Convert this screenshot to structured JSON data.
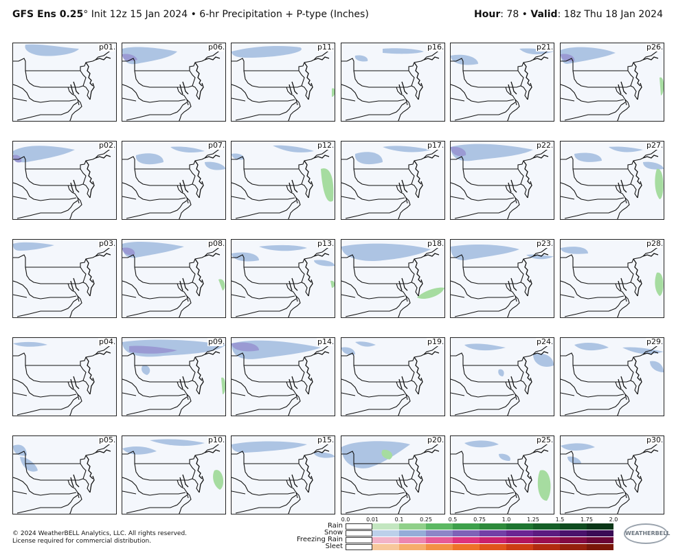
{
  "header": {
    "model": "GFS Ens 0.25",
    "degree": "°",
    "init": " Init 12z 15 Jan 2024",
    "bullet": " • ",
    "product": "6-hr Precipitation + P-type (Inches)",
    "hour_label": "Hour",
    "hour_value": ": 78",
    "valid_label": "Valid",
    "valid_value": ": 18z Thu 18 Jan 2024"
  },
  "panels": {
    "rows": [
      [
        "p01",
        "p06",
        "p11",
        "p16",
        "p21",
        "p26"
      ],
      [
        "p02",
        "p07",
        "p12",
        "p17",
        "p22",
        "p27"
      ],
      [
        "p03",
        "p08",
        "p13",
        "p18",
        "p23",
        "p28"
      ],
      [
        "p04",
        "p09",
        "p14",
        "p19",
        "p24",
        "p29"
      ],
      [
        "p05",
        "p10",
        "p15",
        "p20",
        "p25",
        "p30"
      ]
    ]
  },
  "colorbar": {
    "ticks": [
      "0.0",
      "0.01",
      "0.1",
      "0.25",
      "0.5",
      "0.75",
      "1.0",
      "1.25",
      "1.5",
      "1.75",
      "2.0"
    ],
    "types": [
      "Rain",
      "Snow",
      "Freezing Rain",
      "Sleet"
    ],
    "colors": {
      "rain": [
        "#ffffff",
        "#c3e6c0",
        "#90d08a",
        "#5cb863",
        "#3da04b",
        "#2d8a3b",
        "#1e7531",
        "#155f27",
        "#0e4b1f",
        "#0a3617"
      ],
      "snow": [
        "#ffffff",
        "#bcd0ea",
        "#95acd8",
        "#8c85c7",
        "#7e62b7",
        "#733fa6",
        "#6b2593",
        "#5c1b80",
        "#4a126b",
        "#3a0b55"
      ],
      "freezing_rain": [
        "#ffffff",
        "#f2b3c8",
        "#ec86b0",
        "#e65a97",
        "#dd337d",
        "#c9206c",
        "#b2155d",
        "#9a0f4f",
        "#820a42",
        "#6a0636"
      ],
      "sleet": [
        "#ffffff",
        "#f7c79b",
        "#f6ad6b",
        "#f39045",
        "#ee7229",
        "#e0541b",
        "#cd3d13",
        "#b22b0f",
        "#95200c",
        "#7a1709"
      ]
    }
  },
  "footer": {
    "line1": "© 2024 WeatherBELL Analytics, LLC. All rights reserved.",
    "line2": "License required for commercial distribution."
  },
  "logo": {
    "text": "WEATHERBELL"
  }
}
